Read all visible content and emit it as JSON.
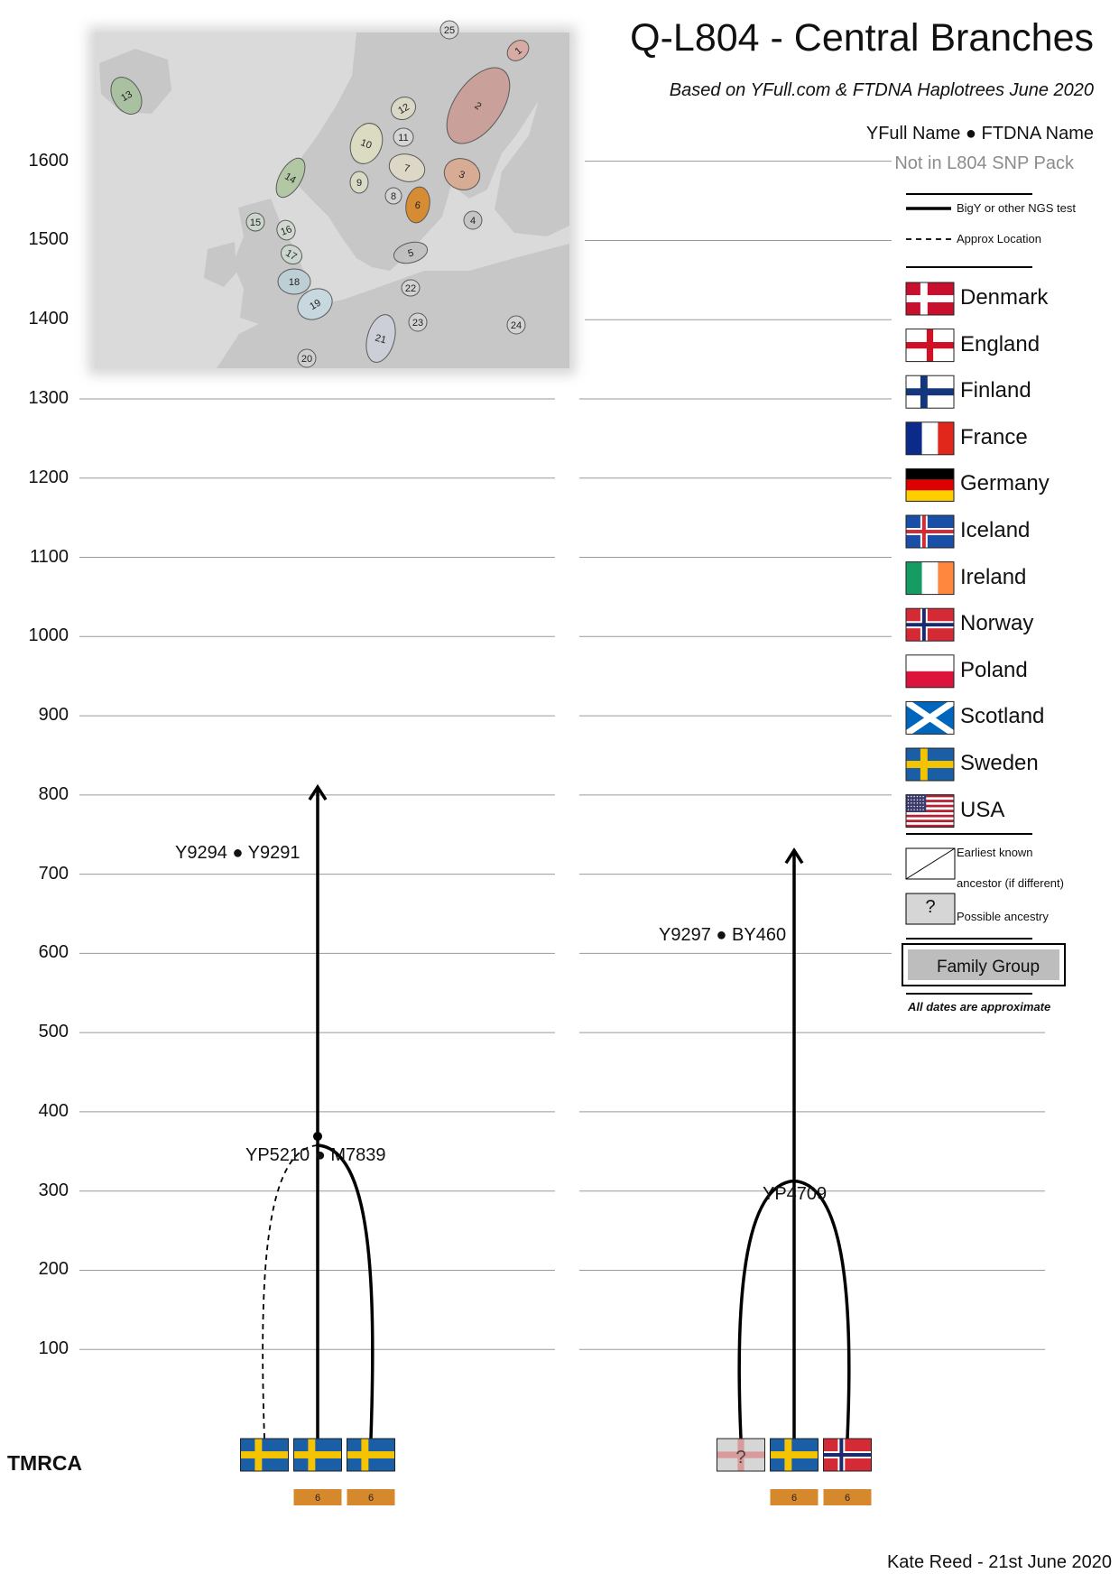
{
  "header": {
    "title": "Q-L804 - Central Branches",
    "subtitle": "Based on YFull.com & FTDNA Haplotrees June 2020"
  },
  "legend": {
    "names_line": "YFull Name ● FTDNA Name",
    "not_in_pack": "Not in L804 SNP Pack",
    "bigy_label": "BigY or other NGS test",
    "approx_label": "Approx Location",
    "countries": [
      {
        "name": "Denmark",
        "flag": "denmark"
      },
      {
        "name": "England",
        "flag": "england"
      },
      {
        "name": "Finland",
        "flag": "finland"
      },
      {
        "name": "France",
        "flag": "france"
      },
      {
        "name": "Germany",
        "flag": "germany"
      },
      {
        "name": "Iceland",
        "flag": "iceland"
      },
      {
        "name": "Ireland",
        "flag": "ireland"
      },
      {
        "name": "Norway",
        "flag": "norway"
      },
      {
        "name": "Poland",
        "flag": "poland"
      },
      {
        "name": "Scotland",
        "flag": "scotland"
      },
      {
        "name": "Sweden",
        "flag": "sweden"
      },
      {
        "name": "USA",
        "flag": "usa"
      }
    ],
    "earliest_known_1": "Earliest known",
    "earliest_known_2": "ancestor (if different)",
    "possible_mark": "?",
    "possible_label": "Possible ancestry",
    "family_group": "Family Group",
    "all_dates": "All dates are approximate"
  },
  "timeline": {
    "years": [
      "1600",
      "1500",
      "1400",
      "1300",
      "1200",
      "1100",
      "1000",
      "900",
      "800",
      "700",
      "600",
      "500",
      "400",
      "300",
      "200",
      "100"
    ],
    "tmrca_label": "TMRCA"
  },
  "branches": {
    "left": {
      "node_label": "YP5210 ● M7839",
      "node_year": 360,
      "terminal_label": "Y9294 ●  Y9291",
      "arrow_year": 810,
      "samples": [
        {
          "flag": "sweden",
          "test": "approx",
          "location": ""
        },
        {
          "flag": "sweden",
          "test": "bigy",
          "location": "6"
        },
        {
          "flag": "sweden",
          "test": "bigy",
          "location": "6"
        }
      ]
    },
    "right": {
      "node_label": "YP4709",
      "node_year": 315,
      "terminal_label": "Y9297 ● BY460",
      "arrow_year": 730,
      "samples": [
        {
          "flag": "england-possible",
          "test": "bigy",
          "location": "",
          "mark": "?"
        },
        {
          "flag": "sweden",
          "test": "bigy",
          "location": "6"
        },
        {
          "flag": "norway",
          "test": "bigy",
          "location": "6"
        }
      ]
    }
  },
  "map": {
    "regions": [
      {
        "label": "1",
        "color": "#d8aaa2"
      },
      {
        "label": "2",
        "color": "#caa098"
      },
      {
        "label": "3",
        "color": "#d9ab92"
      },
      {
        "label": "4",
        "color": "#c4c4c4"
      },
      {
        "label": "5",
        "color": "#c0c0c0"
      },
      {
        "label": "6",
        "color": "#d6892c"
      },
      {
        "label": "7",
        "color": "#ded8c6"
      },
      {
        "label": "8",
        "color": "#d4d4d4"
      },
      {
        "label": "9",
        "color": "#d9dcc6"
      },
      {
        "label": "10",
        "color": "#dcddc0"
      },
      {
        "label": "11",
        "color": "#d6d6d6"
      },
      {
        "label": "12",
        "color": "#dcd8c8"
      },
      {
        "label": "13",
        "color": "#a8c0a0"
      },
      {
        "label": "14",
        "color": "#b0c6a2"
      },
      {
        "label": "15",
        "color": "#cdd6cd"
      },
      {
        "label": "16",
        "color": "#d0d8d0"
      },
      {
        "label": "17",
        "color": "#cdd8d0"
      },
      {
        "label": "18",
        "color": "#bdcfd6"
      },
      {
        "label": "19",
        "color": "#c6d8e0"
      },
      {
        "label": "20",
        "color": "#d0d0d0"
      },
      {
        "label": "21",
        "color": "#cdd0d8"
      },
      {
        "label": "22",
        "color": "#d4d4d4"
      },
      {
        "label": "23",
        "color": "#d4d4d4"
      },
      {
        "label": "24",
        "color": "#d4d4d4"
      },
      {
        "label": "25",
        "color": "#d9d9d9"
      }
    ]
  },
  "credit": "Kate Reed - 21st June 2020"
}
